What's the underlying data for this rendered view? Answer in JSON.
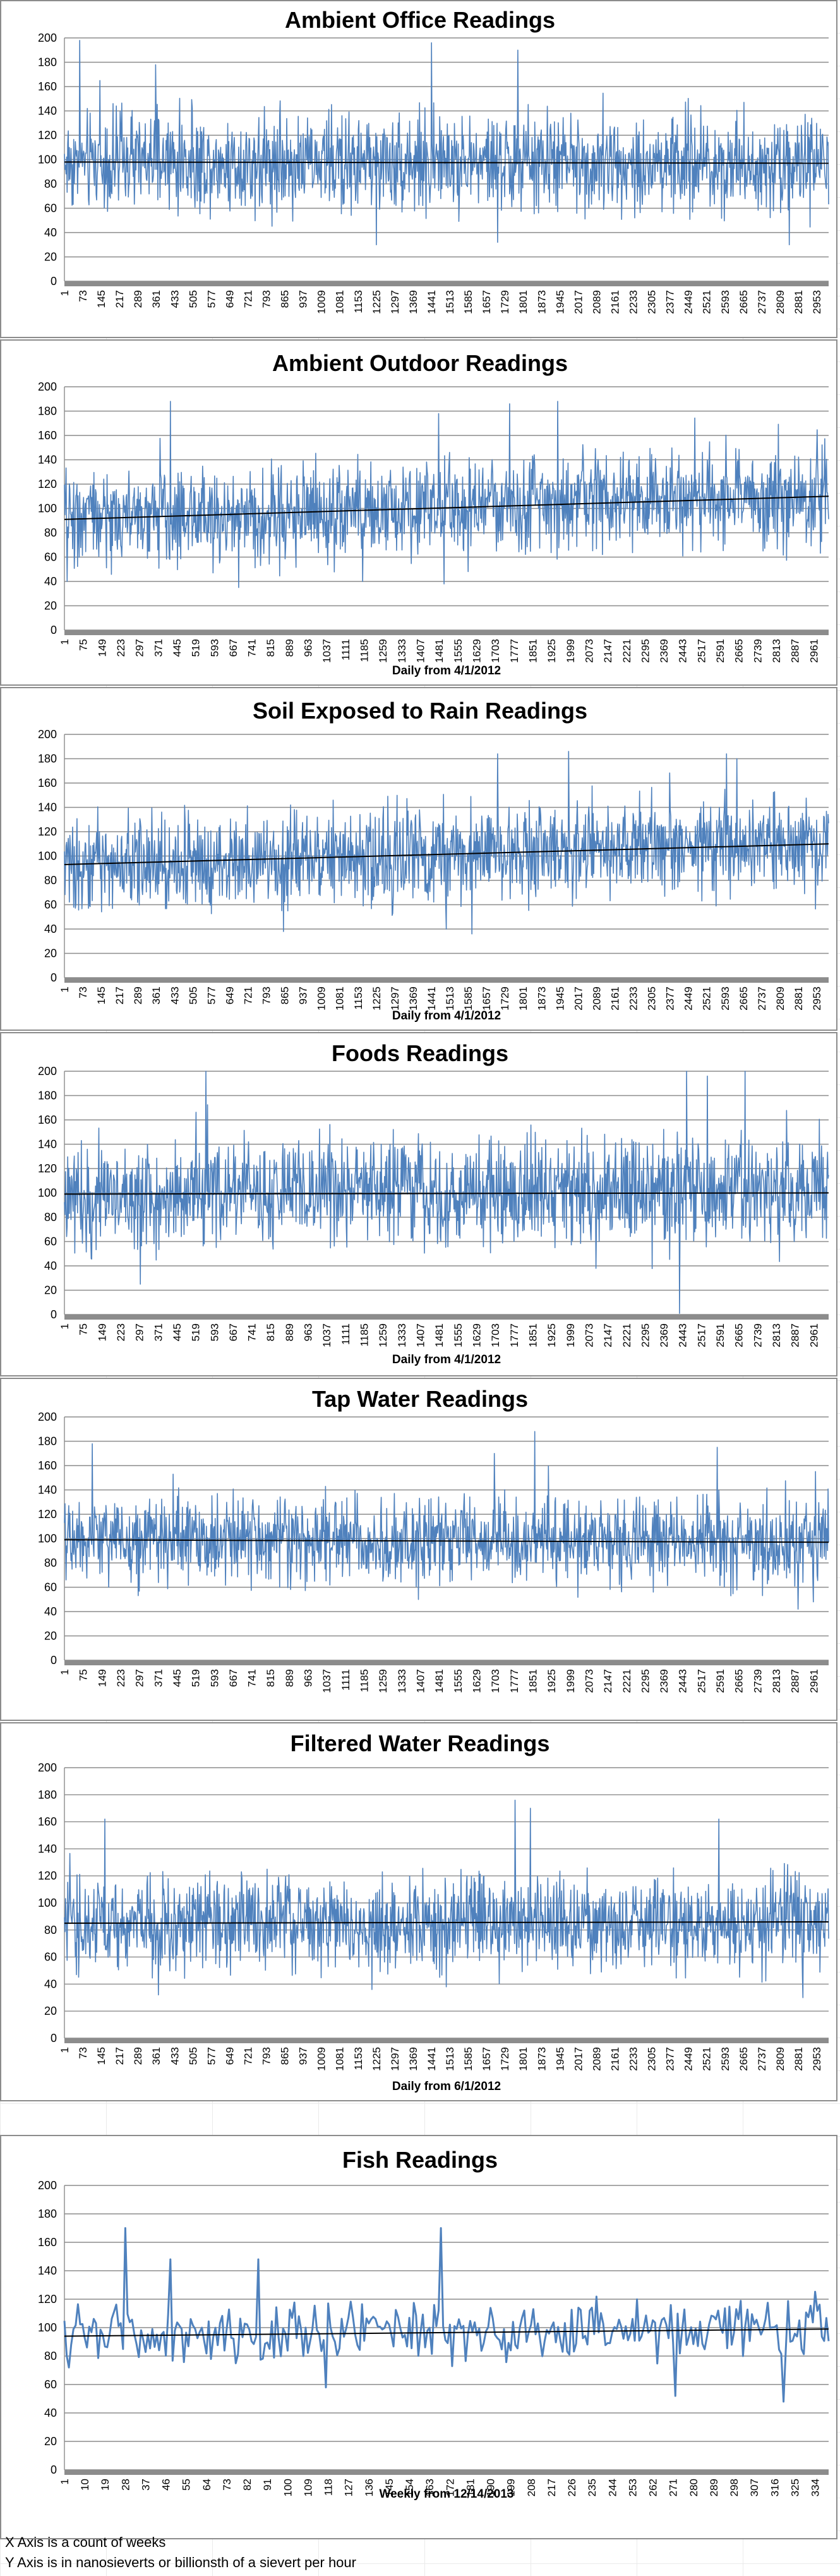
{
  "notes": {
    "x_axis": "X Axis is a count of weeks",
    "y_axis": "Y Axis is in nanosieverts or billionsth of a sievert per hour"
  },
  "chart_data": [
    {
      "type": "line",
      "title": "Ambient Office Readings",
      "xlabel": "",
      "ylabel": "",
      "ylim": [
        0,
        200
      ],
      "yticks": [
        0,
        20,
        40,
        60,
        80,
        100,
        120,
        140,
        160,
        180,
        200
      ],
      "xticks": [
        "1",
        "73",
        "145",
        "217",
        "289",
        "361",
        "433",
        "505",
        "577",
        "649",
        "721",
        "793",
        "865",
        "937",
        "1009",
        "1081",
        "1153",
        "1225",
        "1297",
        "1369",
        "1441",
        "1513",
        "1585",
        "1657",
        "1729",
        "1801",
        "1873",
        "1945",
        "2017",
        "2089",
        "2161",
        "2233",
        "2305",
        "2377",
        "2449",
        "2521",
        "2593",
        "2665",
        "2737",
        "2809",
        "2881",
        "2953"
      ],
      "x_max": 3000,
      "grid": true,
      "legend": "none",
      "color": "#4f81bd",
      "series": [
        {
          "mean": 97,
          "spread": 28,
          "x_peaks": [
            [
              60,
              198
            ],
            [
              1441,
              196
            ],
            [
              1780,
              190
            ],
            [
              360,
              178
            ],
            [
              140,
              165
            ]
          ],
          "x_dips": [
            [
              1225,
              30
            ],
            [
              2845,
              30
            ],
            [
              1700,
              32
            ]
          ]
        }
      ],
      "trendline": {
        "start": 98,
        "end": 97
      }
    },
    {
      "type": "line",
      "title": "Ambient Outdoor Readings",
      "xlabel": "Daily from 4/1/2012",
      "ylabel": "",
      "ylim": [
        0,
        200
      ],
      "yticks": [
        0,
        20,
        40,
        60,
        80,
        100,
        120,
        140,
        160,
        180,
        200
      ],
      "xticks": [
        "1",
        "75",
        "149",
        "223",
        "297",
        "371",
        "445",
        "519",
        "593",
        "667",
        "741",
        "815",
        "889",
        "963",
        "1037",
        "1111",
        "1185",
        "1259",
        "1333",
        "1407",
        "1481",
        "1555",
        "1629",
        "1703",
        "1777",
        "1851",
        "1925",
        "1999",
        "2073",
        "2147",
        "2221",
        "2295",
        "2369",
        "2443",
        "2517",
        "2591",
        "2665",
        "2739",
        "2813",
        "2887",
        "2961"
      ],
      "x_max": 3020,
      "grid": true,
      "legend": "none",
      "color": "#4f81bd",
      "series": [
        {
          "mean": 100,
          "spread": 28,
          "x_peaks": [
            [
              420,
              188
            ],
            [
              1950,
              188
            ],
            [
              1760,
              186
            ],
            [
              1480,
              178
            ]
          ],
          "x_dips": [
            [
              690,
              35
            ],
            [
              1500,
              38
            ],
            [
              1180,
              40
            ]
          ]
        }
      ],
      "trendline": {
        "start": 91,
        "end": 110
      }
    },
    {
      "type": "line",
      "title": "Soil Exposed to Rain Readings",
      "xlabel": "Daily from 4/1/2012",
      "ylabel": "",
      "ylim": [
        0,
        200
      ],
      "yticks": [
        0,
        20,
        40,
        60,
        80,
        100,
        120,
        140,
        160,
        180,
        200
      ],
      "xticks": [
        "1",
        "73",
        "145",
        "217",
        "289",
        "361",
        "433",
        "505",
        "577",
        "649",
        "721",
        "793",
        "865",
        "937",
        "1009",
        "1081",
        "1153",
        "1225",
        "1297",
        "1369",
        "1441",
        "1513",
        "1585",
        "1657",
        "1729",
        "1801",
        "1873",
        "1945",
        "2017",
        "2089",
        "2161",
        "2233",
        "2305",
        "2377",
        "2449",
        "2521",
        "2593",
        "2665",
        "2737",
        "2809",
        "2881",
        "2953"
      ],
      "x_max": 3000,
      "grid": true,
      "legend": "none",
      "color": "#4f81bd",
      "series": [
        {
          "mean": 100,
          "spread": 27,
          "x_peaks": [
            [
              1980,
              186
            ],
            [
              1700,
              184
            ],
            [
              2600,
              184
            ],
            [
              2640,
              180
            ]
          ],
          "x_dips": [
            [
              1600,
              36
            ],
            [
              1500,
              40
            ],
            [
              860,
              38
            ]
          ]
        }
      ],
      "trendline": {
        "start": 93,
        "end": 110
      }
    },
    {
      "type": "line",
      "title": "Foods Readings",
      "xlabel": "Daily from 4/1/2012",
      "ylabel": "",
      "ylim": [
        0,
        200
      ],
      "yticks": [
        0,
        20,
        40,
        60,
        80,
        100,
        120,
        140,
        160,
        180,
        200
      ],
      "xticks": [
        "1",
        "75",
        "149",
        "223",
        "297",
        "371",
        "445",
        "519",
        "593",
        "667",
        "741",
        "815",
        "889",
        "963",
        "1037",
        "1111",
        "1185",
        "1259",
        "1333",
        "1407",
        "1481",
        "1555",
        "1629",
        "1703",
        "1777",
        "1851",
        "1925",
        "1999",
        "2073",
        "2147",
        "2221",
        "2295",
        "2369",
        "2443",
        "2517",
        "2591",
        "2665",
        "2739",
        "2813",
        "2887",
        "2961"
      ],
      "x_max": 3020,
      "grid": true,
      "legend": "none",
      "color": "#4f81bd",
      "series": [
        {
          "mean": 99,
          "spread": 30,
          "x_peaks": [
            [
              560,
              200
            ],
            [
              2460,
              200
            ],
            [
              2690,
              200
            ],
            [
              2540,
              196
            ]
          ],
          "x_dips": [
            [
              2430,
              0
            ],
            [
              300,
              25
            ],
            [
              2100,
              38
            ]
          ]
        }
      ],
      "trendline": {
        "start": 99,
        "end": 100
      }
    },
    {
      "type": "line",
      "title": "Tap Water Readings",
      "xlabel": "",
      "ylabel": "",
      "ylim": [
        0,
        200
      ],
      "yticks": [
        0,
        20,
        40,
        60,
        80,
        100,
        120,
        140,
        160,
        180,
        200
      ],
      "xticks": [
        "1",
        "75",
        "149",
        "223",
        "297",
        "371",
        "445",
        "519",
        "593",
        "667",
        "741",
        "815",
        "889",
        "963",
        "1037",
        "1111",
        "1185",
        "1259",
        "1333",
        "1407",
        "1481",
        "1555",
        "1629",
        "1703",
        "1777",
        "1851",
        "1925",
        "1999",
        "2073",
        "2147",
        "2221",
        "2295",
        "2369",
        "2443",
        "2517",
        "2591",
        "2665",
        "2739",
        "2813",
        "2887",
        "2961"
      ],
      "x_max": 3020,
      "grid": true,
      "legend": "none",
      "color": "#4f81bd",
      "series": [
        {
          "mean": 98,
          "spread": 25,
          "x_peaks": [
            [
              1860,
              188
            ],
            [
              110,
              178
            ],
            [
              2580,
              175
            ],
            [
              1700,
              170
            ]
          ],
          "x_dips": [
            [
              2900,
              42
            ],
            [
              2960,
              48
            ],
            [
              1400,
              50
            ]
          ]
        }
      ],
      "trendline": {
        "start": 99,
        "end": 97
      }
    },
    {
      "type": "line",
      "title": "Filtered Water Readings",
      "xlabel": "Daily from 6/1/2012",
      "ylabel": "",
      "ylim": [
        0,
        200
      ],
      "yticks": [
        0,
        20,
        40,
        60,
        80,
        100,
        120,
        140,
        160,
        180,
        200
      ],
      "xticks": [
        "1",
        "73",
        "145",
        "217",
        "289",
        "361",
        "433",
        "505",
        "577",
        "649",
        "721",
        "793",
        "865",
        "937",
        "1009",
        "1081",
        "1153",
        "1225",
        "1297",
        "1369",
        "1441",
        "1513",
        "1585",
        "1657",
        "1729",
        "1801",
        "1873",
        "1945",
        "2017",
        "2089",
        "2161",
        "2233",
        "2305",
        "2377",
        "2449",
        "2521",
        "2593",
        "2665",
        "2737",
        "2809",
        "2881",
        "2953"
      ],
      "x_max": 3000,
      "grid": true,
      "legend": "none",
      "color": "#4f81bd",
      "series": [
        {
          "mean": 85,
          "spread": 24,
          "x_peaks": [
            [
              1770,
              176
            ],
            [
              1830,
              170
            ],
            [
              160,
              162
            ],
            [
              2570,
              162
            ]
          ],
          "x_dips": [
            [
              2900,
              30
            ],
            [
              370,
              32
            ],
            [
              1500,
              38
            ]
          ]
        }
      ],
      "trendline": {
        "start": 85,
        "end": 86
      }
    },
    {
      "type": "line",
      "title": "Fish Readings",
      "xlabel": "Weekly from 12/14/2013",
      "ylabel": "",
      "ylim": [
        0,
        200
      ],
      "yticks": [
        0,
        20,
        40,
        60,
        80,
        100,
        120,
        140,
        160,
        180,
        200
      ],
      "xticks": [
        "1",
        "10",
        "19",
        "28",
        "37",
        "46",
        "55",
        "64",
        "73",
        "82",
        "91",
        "100",
        "109",
        "118",
        "127",
        "136",
        "145",
        "154",
        "163",
        "172",
        "181",
        "190",
        "199",
        "208",
        "217",
        "226",
        "235",
        "244",
        "253",
        "262",
        "271",
        "280",
        "289",
        "298",
        "307",
        "316",
        "325",
        "334"
      ],
      "x_max": 340,
      "grid": true,
      "legend": "none",
      "color": "#4f81bd",
      "series": [
        {
          "mean": 97,
          "spread": 15,
          "x_peaks": [
            [
              28,
              170
            ],
            [
              168,
              170
            ],
            [
              48,
              148
            ],
            [
              87,
              148
            ]
          ],
          "x_dips": [
            [
              320,
              48
            ],
            [
              272,
              52
            ],
            [
              117,
              58
            ]
          ]
        }
      ],
      "trendline": {
        "start": 94,
        "end": 99
      }
    }
  ]
}
